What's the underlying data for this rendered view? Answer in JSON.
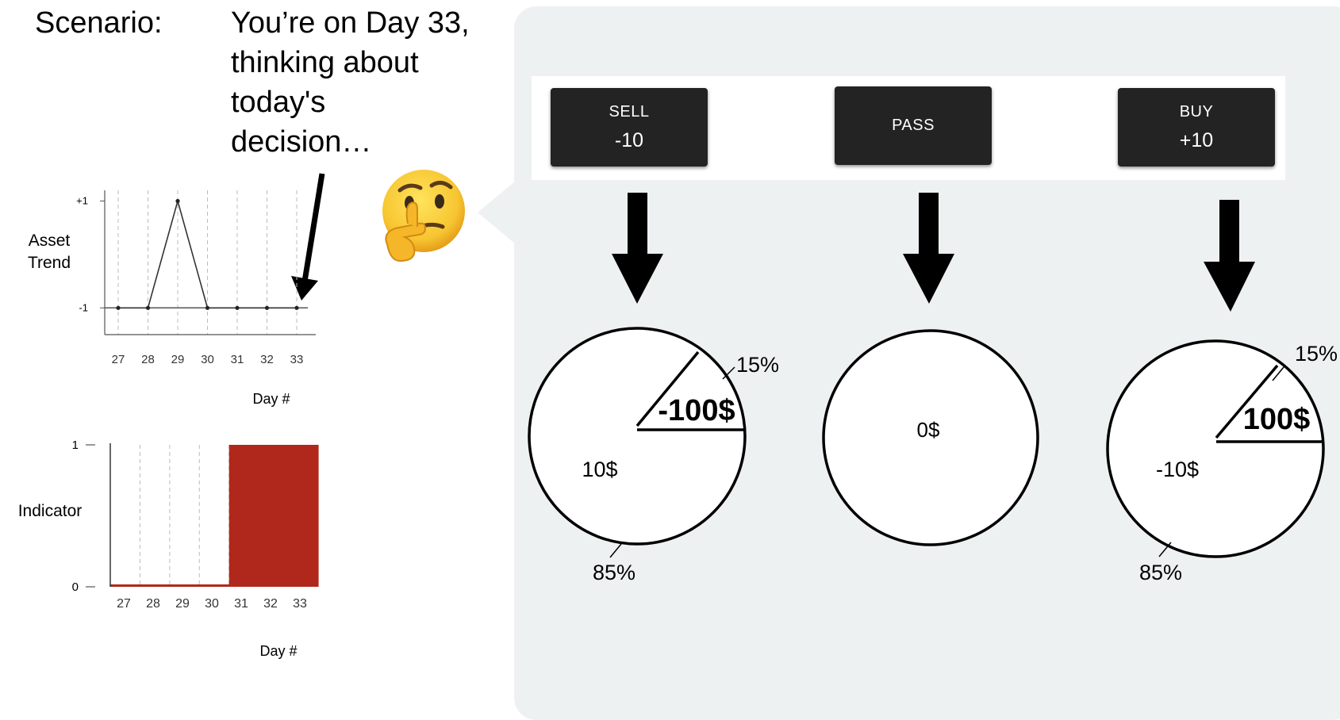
{
  "scenario": {
    "label": "Scenario:",
    "text_lines": [
      "You’re on Day 33,",
      "thinking about",
      "today's",
      "decision…"
    ]
  },
  "actions": [
    {
      "label": "SELL",
      "value": "-10"
    },
    {
      "label": "PASS",
      "value": ""
    },
    {
      "label": "BUY",
      "value": "+10"
    }
  ],
  "outcomes": [
    {
      "main_label": "10$",
      "slice_label": "-100$",
      "slice_pct": "15%",
      "rest_pct": "85%",
      "slice_fraction": 0.15
    },
    {
      "main_label": "0$"
    },
    {
      "main_label": "-10$",
      "slice_label": "100$",
      "slice_pct": "15%",
      "rest_pct": "85%",
      "slice_fraction": 0.15
    }
  ],
  "colors": {
    "panel": "#eef1f2",
    "button": "#232323",
    "bar": "#b0281c",
    "line": "#333333"
  },
  "chart_data": [
    {
      "type": "line",
      "ylabel": "Asset Trend",
      "xlabel": "Day #",
      "x": [
        27,
        28,
        29,
        30,
        31,
        32,
        33
      ],
      "values": [
        -1,
        -1,
        1,
        -1,
        -1,
        -1,
        -1
      ],
      "yticks": [
        "+1",
        "-1"
      ],
      "ytick_values": [
        1,
        -1
      ],
      "ylim": [
        -1.5,
        1.2
      ],
      "grid": "vertical dashed"
    },
    {
      "type": "bar",
      "ylabel": "Indicator",
      "xlabel": "Day #",
      "categories": [
        "27",
        "28",
        "29",
        "30",
        "31",
        "32",
        "33"
      ],
      "values": [
        0,
        0,
        0,
        0,
        1,
        1,
        1
      ],
      "yticks": [
        "1",
        "0"
      ],
      "ytick_values": [
        1,
        0
      ],
      "ylim": [
        0,
        1
      ],
      "grid": "vertical dashed"
    }
  ]
}
